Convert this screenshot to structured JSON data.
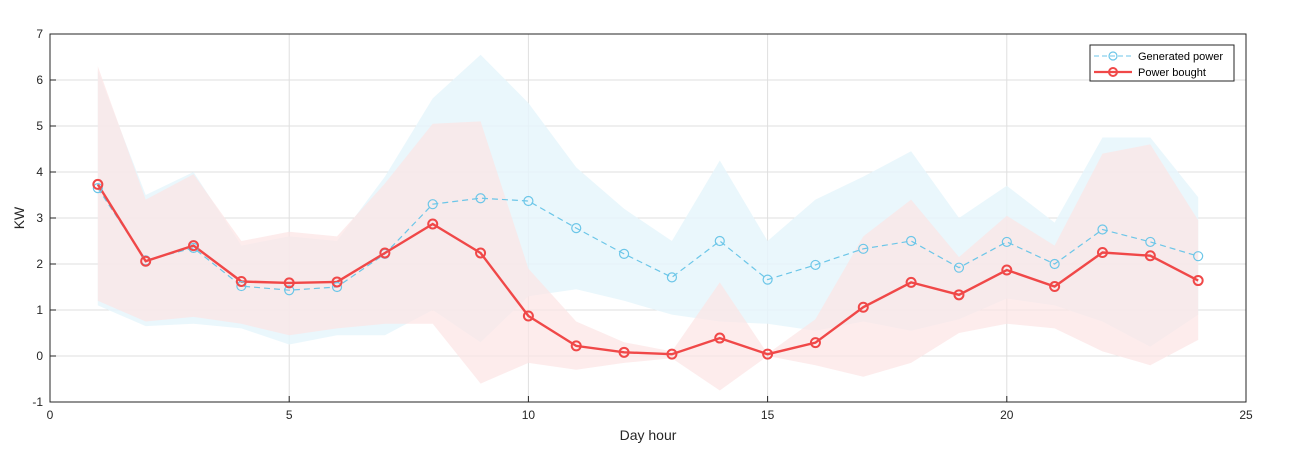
{
  "chart_data": {
    "type": "line",
    "xlabel": "Day hour",
    "ylabel": "KW",
    "xlim": [
      0,
      25
    ],
    "ylim": [
      -1,
      7
    ],
    "xticks": [
      0,
      5,
      10,
      15,
      20,
      25
    ],
    "yticks": [
      -1,
      0,
      1,
      2,
      3,
      4,
      5,
      6,
      7
    ],
    "x_tick_labels": [
      "0",
      "5",
      "10",
      "15",
      "20",
      "25"
    ],
    "y_tick_labels": [
      "-1",
      "0",
      "1",
      "2",
      "3",
      "4",
      "5",
      "6",
      "7"
    ],
    "grid": true,
    "legend_position": "top-right",
    "x": [
      1,
      2,
      3,
      4,
      5,
      6,
      7,
      8,
      9,
      10,
      11,
      12,
      13,
      14,
      15,
      16,
      17,
      18,
      19,
      20,
      21,
      22,
      23,
      24
    ],
    "series": [
      {
        "name": "Generated power",
        "color": "#6cc6e8",
        "band_color": "#e6f6fc",
        "line_style": "dashed",
        "marker": "circle-open",
        "values": [
          3.65,
          2.08,
          2.35,
          1.52,
          1.43,
          1.5,
          2.22,
          3.3,
          3.43,
          3.37,
          2.78,
          2.22,
          1.71,
          2.5,
          1.66,
          1.98,
          2.33,
          2.5,
          1.92,
          2.48,
          2.0,
          2.75,
          2.48,
          2.17
        ],
        "band_upper": [
          6.2,
          3.5,
          4.0,
          2.4,
          2.6,
          2.5,
          3.9,
          5.6,
          6.55,
          5.5,
          4.1,
          3.2,
          2.5,
          4.25,
          2.5,
          3.4,
          3.9,
          4.45,
          3.0,
          3.7,
          2.9,
          4.75,
          4.75,
          3.45
        ],
        "band_lower": [
          1.1,
          0.65,
          0.7,
          0.6,
          0.25,
          0.45,
          0.45,
          1.0,
          0.3,
          1.3,
          1.45,
          1.2,
          0.9,
          0.75,
          0.7,
          0.55,
          0.75,
          0.55,
          0.8,
          1.25,
          1.1,
          0.75,
          0.2,
          0.9
        ]
      },
      {
        "name": "Power bought",
        "color": "#f04848",
        "band_color": "#fce4e4",
        "line_style": "solid",
        "marker": "circle-open",
        "values": [
          3.73,
          2.06,
          2.4,
          1.62,
          1.59,
          1.61,
          2.24,
          2.87,
          2.24,
          0.87,
          0.22,
          0.08,
          0.04,
          0.39,
          0.04,
          0.29,
          1.06,
          1.6,
          1.33,
          1.87,
          1.51,
          2.25,
          2.18,
          1.64
        ],
        "band_upper": [
          6.3,
          3.4,
          3.95,
          2.5,
          2.7,
          2.6,
          3.75,
          5.05,
          5.1,
          1.9,
          0.75,
          0.3,
          0.1,
          1.6,
          0.05,
          0.8,
          2.6,
          3.4,
          2.15,
          3.05,
          2.4,
          4.4,
          4.6,
          2.95
        ],
        "band_lower": [
          1.2,
          0.75,
          0.85,
          0.7,
          0.45,
          0.6,
          0.7,
          0.7,
          -0.6,
          -0.15,
          -0.3,
          -0.15,
          -0.05,
          -0.75,
          0.0,
          -0.2,
          -0.45,
          -0.15,
          0.5,
          0.7,
          0.6,
          0.1,
          -0.2,
          0.35
        ]
      }
    ]
  }
}
